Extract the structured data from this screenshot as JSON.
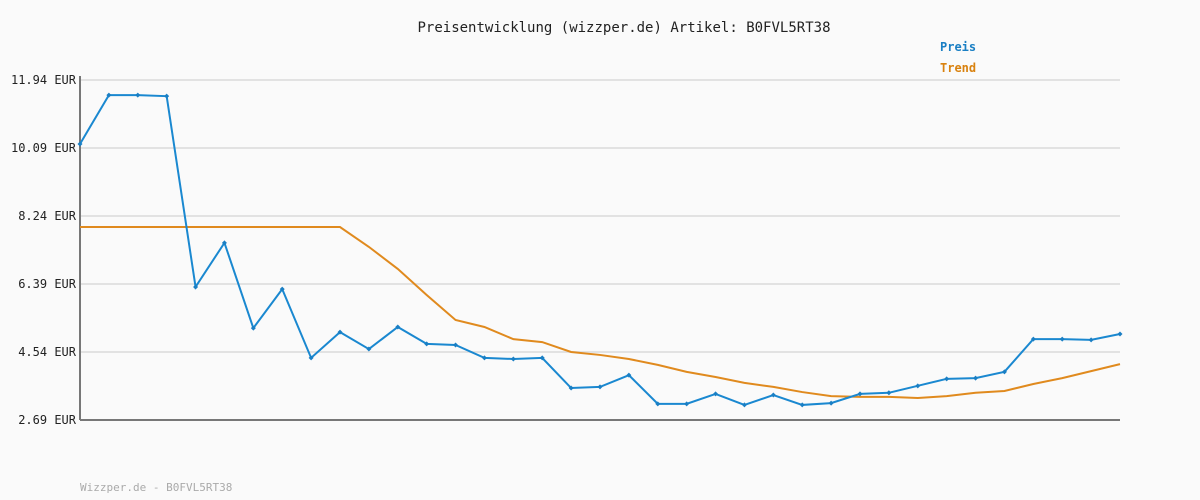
{
  "chart_data": {
    "type": "line",
    "title": "Preisentwicklung (wizzper.de) Artikel: B0FVL5RT38",
    "xlabel": "",
    "ylabel": "",
    "ylim": [
      2.69,
      11.94
    ],
    "yticks": [
      2.69,
      4.54,
      6.39,
      8.24,
      10.09,
      11.94
    ],
    "ytick_labels": [
      "2.69 EUR",
      "4.54 EUR",
      "6.39 EUR",
      "8.24 EUR",
      "10.09 EUR",
      "11.94 EUR"
    ],
    "grid": true,
    "legend_placement": "top-right",
    "series": [
      {
        "name": "Preis",
        "color": "#1a88d0",
        "markers": true,
        "values": [
          10.2,
          11.53,
          11.53,
          11.5,
          6.31,
          7.51,
          5.19,
          6.25,
          4.38,
          5.08,
          4.62,
          5.22,
          4.76,
          4.73,
          4.38,
          4.35,
          4.38,
          3.56,
          3.59,
          3.91,
          3.13,
          3.13,
          3.4,
          3.1,
          3.37,
          3.1,
          3.15,
          3.4,
          3.43,
          3.62,
          3.81,
          3.83,
          4.0,
          4.89,
          4.89,
          4.87,
          5.03
        ]
      },
      {
        "name": "Trend",
        "color": "#e08a1e",
        "markers": false,
        "values": [
          7.94,
          7.94,
          7.94,
          7.94,
          7.94,
          7.94,
          7.94,
          7.94,
          7.94,
          7.94,
          7.4,
          6.8,
          6.09,
          5.41,
          5.22,
          4.89,
          4.81,
          4.54,
          4.46,
          4.35,
          4.19,
          4.0,
          3.86,
          3.7,
          3.59,
          3.45,
          3.34,
          3.32,
          3.32,
          3.29,
          3.34,
          3.43,
          3.48,
          3.67,
          3.83,
          4.02,
          4.21
        ]
      }
    ]
  },
  "footer": "Wizzper.de - B0FVL5RT38"
}
